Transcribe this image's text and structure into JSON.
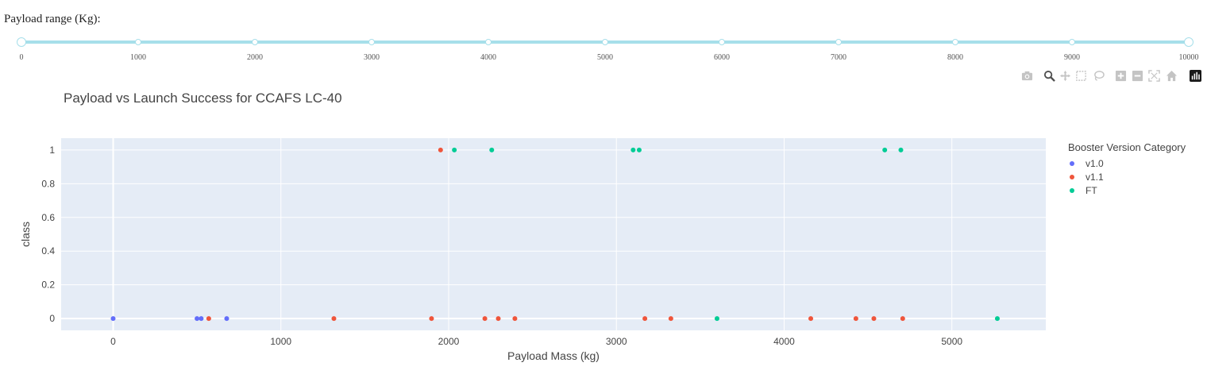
{
  "slider": {
    "label": "Payload range (Kg):",
    "min": 0,
    "max": 10000,
    "step": 1000,
    "value": [
      0,
      10000
    ],
    "marks": [
      "0",
      "1000",
      "2000",
      "3000",
      "4000",
      "5000",
      "6000",
      "7000",
      "8000",
      "9000",
      "10000"
    ],
    "color": "#a7dfea"
  },
  "modebar": {
    "icons": [
      "camera-icon",
      "zoom-icon",
      "pan-icon",
      "box-select-icon",
      "lasso-icon",
      "zoom-in-icon",
      "zoom-out-icon",
      "autoscale-icon",
      "reset-axes-icon",
      "plotly-logo-icon"
    ]
  },
  "chart_data": {
    "type": "scatter",
    "title": "Payload vs Launch Success for CCAFS LC-40",
    "xlabel": "Payload Mass (kg)",
    "ylabel": "class",
    "xlim": [
      -310,
      5560
    ],
    "ylim": [
      -0.07,
      1.07
    ],
    "xticks": [
      0,
      1000,
      2000,
      3000,
      4000,
      5000
    ],
    "xtick_labels": [
      "0",
      "1000",
      "2000",
      "3000",
      "4000",
      "5000"
    ],
    "yticks": [
      0,
      0.2,
      0.4,
      0.6,
      0.8,
      1
    ],
    "ytick_labels": [
      "0",
      "0.2",
      "0.4",
      "0.6",
      "0.8",
      "1"
    ],
    "grid": true,
    "plot_bgcolor": "#e5ecf6",
    "legend_title": "Booster Version Category",
    "legend_position": "right",
    "series": [
      {
        "name": "v1.0",
        "color": "#636efa",
        "points": [
          [
            0,
            0
          ],
          [
            500,
            0
          ],
          [
            525,
            0
          ],
          [
            677,
            0
          ]
        ]
      },
      {
        "name": "v1.1",
        "color": "#ef553b",
        "points": [
          [
            570,
            0
          ],
          [
            1316,
            0
          ],
          [
            1898,
            0
          ],
          [
            1952,
            1
          ],
          [
            2216,
            0
          ],
          [
            2296,
            0
          ],
          [
            2395,
            0
          ],
          [
            3170,
            0
          ],
          [
            3325,
            0
          ],
          [
            4159,
            0
          ],
          [
            4428,
            0
          ],
          [
            4535,
            0
          ],
          [
            4707,
            0
          ]
        ]
      },
      {
        "name": "FT",
        "color": "#00cc96",
        "points": [
          [
            2034,
            1
          ],
          [
            2257,
            1
          ],
          [
            3100,
            1
          ],
          [
            3136,
            1
          ],
          [
            3600,
            0
          ],
          [
            4600,
            1
          ],
          [
            4696,
            1
          ],
          [
            5271,
            0
          ]
        ]
      }
    ]
  }
}
